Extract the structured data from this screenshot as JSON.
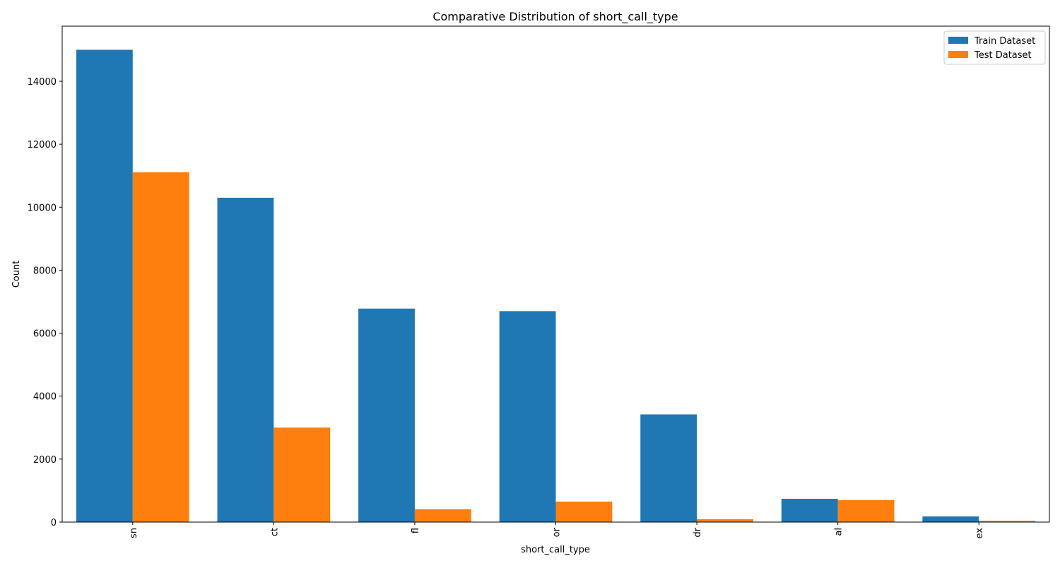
{
  "chart_data": {
    "type": "bar",
    "title": "Comparative Distribution of short_call_type",
    "xlabel": "short_call_type",
    "ylabel": "Count",
    "categories": [
      "sn",
      "ct",
      "fl",
      "or",
      "dr",
      "al",
      "ex"
    ],
    "series": [
      {
        "name": "Train Dataset",
        "color": "#1f77b4",
        "values": [
          15000,
          10300,
          6780,
          6700,
          3420,
          740,
          180
        ]
      },
      {
        "name": "Test Dataset",
        "color": "#ff7f0e",
        "values": [
          11110,
          3000,
          410,
          650,
          90,
          700,
          40
        ]
      }
    ],
    "ylim": [
      0,
      15750
    ],
    "yticks": [
      0,
      2000,
      4000,
      6000,
      8000,
      10000,
      12000,
      14000
    ],
    "xtick_rotation": "vertical",
    "grid": false,
    "legend_position": "top-right"
  }
}
